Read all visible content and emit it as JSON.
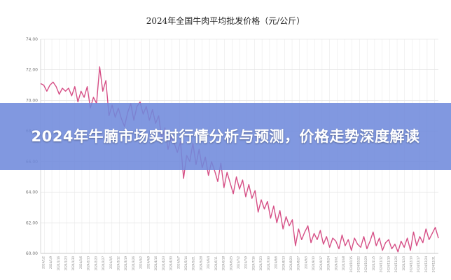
{
  "headline": "2024年牛腩市场实时行情分析与预测，价格走势深度解读",
  "colors": {
    "line": "#d64f86",
    "banner": "#708adc",
    "grid": "#dcdcdc",
    "headline_text": "#ffffff"
  },
  "chart_data": {
    "type": "line",
    "title": "2024年全国牛肉平均批发价格（元/公斤）",
    "xlabel": "",
    "ylabel": "",
    "ylim": [
      60,
      74
    ],
    "yticks": [
      60,
      62,
      64,
      66,
      68,
      70,
      72,
      74
    ],
    "ytick_labels": [
      "60.00",
      "62.00",
      "64.00",
      "66.00",
      "68.00",
      "70.00",
      "72.00",
      "74.00"
    ],
    "grid": true,
    "legend": "none",
    "x_tick_labels": [
      "2024/1/2",
      "2024/1/9",
      "2024/1/16",
      "2024/1/23",
      "2024/1/30",
      "2024/2/6",
      "2024/2/13",
      "2024/2/20",
      "2024/2/27",
      "2024/3/5",
      "2024/3/12",
      "2024/3/19",
      "2024/3/26",
      "2024/4/2",
      "2024/4/9",
      "2024/4/16",
      "2024/4/23",
      "2024/4/30",
      "2024/5/7",
      "2024/5/14",
      "2024/5/21",
      "2024/5/28",
      "2024/6/4",
      "2024/6/11",
      "2024/6/18",
      "2024/6/25",
      "2024/7/2",
      "2024/7/9",
      "2024/7/16",
      "2024/7/23",
      "2024/7/30",
      "2024/8/6",
      "2024/8/13",
      "2024/8/20",
      "2024/8/27",
      "2024/9/3",
      "2024/9/10",
      "2024/9/17",
      "2024/9/24",
      "2024/10/1",
      "2024/10/8",
      "2024/10/15",
      "2024/10/22",
      "2024/10/29",
      "2024/11/5",
      "2024/11/12",
      "2024/11/19",
      "2024/11/26",
      "2024/12/3",
      "2024/12/10",
      "2024/12/17",
      "2024/12/24",
      "2024/12/31"
    ],
    "series": [
      {
        "values": [
          71.1,
          71.0,
          70.6,
          71.0,
          71.2,
          70.9,
          70.4,
          70.8,
          70.6,
          70.8,
          70.3,
          70.9,
          69.9,
          70.6,
          70.2,
          70.9,
          69.5,
          70.2,
          69.8,
          72.2,
          70.6,
          71.3,
          69.0,
          69.7,
          68.9,
          69.5,
          68.8,
          68.3,
          69.2,
          69.8,
          68.7,
          69.6,
          69.9,
          69.1,
          69.6,
          68.7,
          69.4,
          68.5,
          69.0,
          67.4,
          68.2,
          66.8,
          67.6,
          67.2,
          66.6,
          67.3,
          64.9,
          66.4,
          66.0,
          67.2,
          65.8,
          66.8,
          65.6,
          66.3,
          65.1,
          66.0,
          65.4,
          64.7,
          65.9,
          64.3,
          65.3,
          64.6,
          63.9,
          65.0,
          64.2,
          64.8,
          63.7,
          64.5,
          63.6,
          64.1,
          62.7,
          63.5,
          62.9,
          63.4,
          62.3,
          63.1,
          62.0,
          62.8,
          61.6,
          62.4,
          61.8,
          62.2,
          60.5,
          61.6,
          60.9,
          61.4,
          61.8,
          60.7,
          61.3,
          60.9,
          61.5,
          60.6,
          61.1,
          60.4,
          61.0,
          60.8,
          60.3,
          61.2,
          60.5,
          60.9,
          60.2,
          61.0,
          60.6,
          60.4,
          61.1,
          60.3,
          60.8,
          61.4,
          60.5,
          61.0,
          60.2,
          60.7,
          60.9,
          60.3,
          60.6,
          60.1,
          60.8,
          60.4,
          61.0,
          60.2,
          61.4,
          60.5,
          61.1,
          60.7,
          61.6,
          60.9,
          61.3,
          61.7,
          61.0
        ]
      }
    ]
  }
}
